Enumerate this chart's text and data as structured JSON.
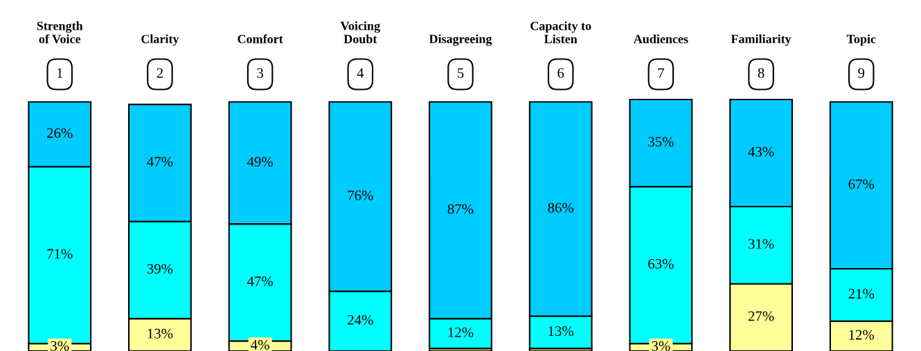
{
  "chart_data": {
    "type": "bar",
    "stacked": true,
    "categories": [
      "Strength\nof Voice",
      "Clarity",
      "Comfort",
      "Voicing\nDoubt",
      "Disagreeing",
      "Capacity to\nListen",
      "Audiences",
      "Familiarity",
      "Topic"
    ],
    "series": [
      {
        "color": "#ffff99",
        "values": [
          3,
          13,
          4,
          0,
          1,
          1,
          3,
          27,
          12
        ],
        "value_labels": [
          "3%",
          "13%",
          "4%",
          null,
          null,
          null,
          "3%",
          "27%",
          "12%"
        ]
      },
      {
        "color": "#00ffff",
        "values": [
          71,
          39,
          47,
          24,
          12,
          13,
          63,
          31,
          21
        ],
        "value_labels": [
          "71%",
          "39%",
          "47%",
          "24%",
          "12%",
          "13%",
          "63%",
          "31%",
          "21%"
        ]
      },
      {
        "color": "#00ccff",
        "values": [
          26,
          47,
          49,
          76,
          87,
          86,
          35,
          43,
          67
        ],
        "value_labels": [
          "26%",
          "47%",
          "49%",
          "76%",
          "87%",
          "86%",
          "35%",
          "43%",
          "67%"
        ]
      }
    ],
    "annotations": [
      "1",
      "2",
      "3",
      "4",
      "5",
      "6",
      "7",
      "8",
      "9"
    ]
  }
}
